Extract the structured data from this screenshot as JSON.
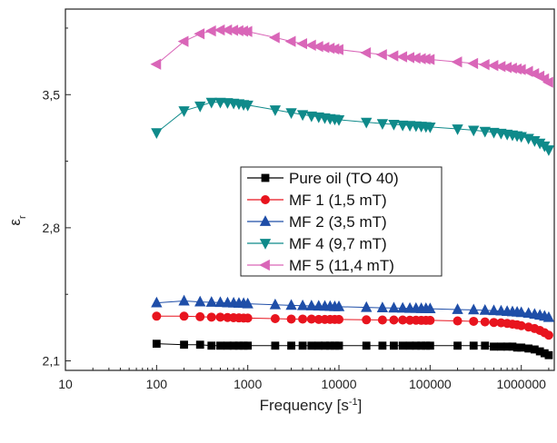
{
  "chart_data": {
    "type": "line",
    "xlabel": "Frequency [s",
    "xlabel_sup": "-1",
    "xlabel_end": "]",
    "ylabel": "ε",
    "ylabel_sub": "r",
    "x_scale": "log",
    "xlim": [
      10,
      2300000
    ],
    "ylim": [
      2.05,
      3.95
    ],
    "x_ticks": [
      10,
      100,
      1000,
      10000,
      100000,
      1000000
    ],
    "x_tick_labels": [
      "10",
      "100",
      "1000",
      "10000",
      "100000",
      "1000000"
    ],
    "y_ticks": [
      2.1,
      2.8,
      3.5
    ],
    "y_tick_labels": [
      "2,1",
      "2,8",
      "3,5"
    ],
    "grid": false,
    "legend_position": "center",
    "series": [
      {
        "name": "Pure oil (TO 40)",
        "color": "#000000",
        "marker": "square",
        "x": [
          100,
          200,
          300,
          400,
          500,
          600,
          700,
          800,
          900,
          1000,
          2000,
          3000,
          4000,
          5000,
          6000,
          7000,
          8000,
          9000,
          10000,
          20000,
          30000,
          40000,
          50000,
          60000,
          70000,
          80000,
          90000,
          100000,
          200000,
          300000,
          400000,
          500000,
          600000,
          700000,
          800000,
          900000,
          1000000,
          1200000,
          1400000,
          1600000,
          1800000,
          2000000
        ],
        "y": [
          2.19,
          2.185,
          2.185,
          2.18,
          2.18,
          2.18,
          2.18,
          2.18,
          2.18,
          2.18,
          2.18,
          2.18,
          2.18,
          2.18,
          2.18,
          2.18,
          2.18,
          2.18,
          2.18,
          2.18,
          2.18,
          2.18,
          2.18,
          2.18,
          2.18,
          2.18,
          2.18,
          2.18,
          2.18,
          2.18,
          2.18,
          2.175,
          2.175,
          2.175,
          2.175,
          2.17,
          2.17,
          2.165,
          2.16,
          2.15,
          2.14,
          2.13
        ]
      },
      {
        "name": "MF 1 (1,5 mT)",
        "color": "#e8141e",
        "marker": "circle",
        "x": [
          100,
          200,
          300,
          400,
          500,
          600,
          700,
          800,
          900,
          1000,
          2000,
          3000,
          4000,
          5000,
          6000,
          7000,
          8000,
          9000,
          10000,
          20000,
          30000,
          40000,
          50000,
          60000,
          70000,
          80000,
          90000,
          100000,
          200000,
          300000,
          400000,
          500000,
          600000,
          700000,
          800000,
          900000,
          1000000,
          1200000,
          1400000,
          1600000,
          1800000,
          2000000
        ],
        "y": [
          2.335,
          2.335,
          2.332,
          2.33,
          2.33,
          2.328,
          2.327,
          2.326,
          2.325,
          2.325,
          2.322,
          2.32,
          2.32,
          2.32,
          2.318,
          2.318,
          2.318,
          2.318,
          2.318,
          2.316,
          2.315,
          2.315,
          2.315,
          2.314,
          2.314,
          2.313,
          2.313,
          2.313,
          2.31,
          2.308,
          2.305,
          2.302,
          2.3,
          2.297,
          2.293,
          2.29,
          2.285,
          2.278,
          2.27,
          2.26,
          2.248,
          2.235
        ]
      },
      {
        "name": "MF 2 (3,5 mT)",
        "color": "#1f4ea8",
        "marker": "triangle-up",
        "x": [
          100,
          200,
          300,
          400,
          500,
          600,
          700,
          800,
          900,
          1000,
          2000,
          3000,
          4000,
          5000,
          6000,
          7000,
          8000,
          9000,
          10000,
          20000,
          30000,
          40000,
          50000,
          60000,
          70000,
          80000,
          90000,
          100000,
          200000,
          300000,
          400000,
          500000,
          600000,
          700000,
          800000,
          900000,
          1000000,
          1200000,
          1400000,
          1600000,
          1800000,
          2000000
        ],
        "y": [
          2.405,
          2.415,
          2.41,
          2.408,
          2.407,
          2.405,
          2.404,
          2.403,
          2.402,
          2.4,
          2.395,
          2.392,
          2.39,
          2.389,
          2.388,
          2.387,
          2.386,
          2.385,
          2.385,
          2.381,
          2.379,
          2.378,
          2.377,
          2.376,
          2.376,
          2.375,
          2.375,
          2.374,
          2.37,
          2.368,
          2.366,
          2.364,
          2.362,
          2.36,
          2.358,
          2.356,
          2.354,
          2.35,
          2.345,
          2.34,
          2.335,
          2.328
        ]
      },
      {
        "name": "MF 4 (9,7 mT)",
        "color": "#0f8a8a",
        "marker": "triangle-down",
        "x": [
          100,
          200,
          300,
          400,
          500,
          600,
          700,
          800,
          900,
          1000,
          2000,
          3000,
          4000,
          5000,
          6000,
          7000,
          8000,
          9000,
          10000,
          20000,
          30000,
          40000,
          50000,
          60000,
          70000,
          80000,
          90000,
          100000,
          200000,
          300000,
          400000,
          500000,
          600000,
          700000,
          800000,
          900000,
          1000000,
          1200000,
          1400000,
          1600000,
          1800000,
          2000000
        ],
        "y": [
          3.3,
          3.415,
          3.44,
          3.46,
          3.46,
          3.458,
          3.455,
          3.452,
          3.448,
          3.445,
          3.42,
          3.405,
          3.395,
          3.388,
          3.383,
          3.378,
          3.374,
          3.371,
          3.368,
          3.355,
          3.348,
          3.344,
          3.34,
          3.338,
          3.336,
          3.334,
          3.332,
          3.33,
          3.32,
          3.313,
          3.307,
          3.302,
          3.297,
          3.292,
          3.288,
          3.284,
          3.28,
          3.27,
          3.258,
          3.245,
          3.23,
          3.21
        ]
      },
      {
        "name": "MF 5 (11,4 mT)",
        "color": "#d966b8",
        "marker": "triangle-left",
        "x": [
          100,
          200,
          300,
          400,
          500,
          600,
          700,
          800,
          900,
          1000,
          2000,
          3000,
          4000,
          5000,
          6000,
          7000,
          8000,
          9000,
          10000,
          20000,
          30000,
          40000,
          50000,
          60000,
          70000,
          80000,
          90000,
          100000,
          200000,
          300000,
          400000,
          500000,
          600000,
          700000,
          800000,
          900000,
          1000000,
          1200000,
          1400000,
          1600000,
          1800000,
          2000000
        ],
        "y": [
          3.66,
          3.78,
          3.82,
          3.835,
          3.84,
          3.84,
          3.838,
          3.836,
          3.834,
          3.832,
          3.8,
          3.78,
          3.768,
          3.76,
          3.753,
          3.748,
          3.744,
          3.74,
          3.737,
          3.72,
          3.71,
          3.704,
          3.699,
          3.695,
          3.692,
          3.689,
          3.687,
          3.685,
          3.672,
          3.664,
          3.658,
          3.653,
          3.648,
          3.643,
          3.639,
          3.635,
          3.632,
          3.622,
          3.61,
          3.597,
          3.583,
          3.565
        ]
      }
    ]
  }
}
